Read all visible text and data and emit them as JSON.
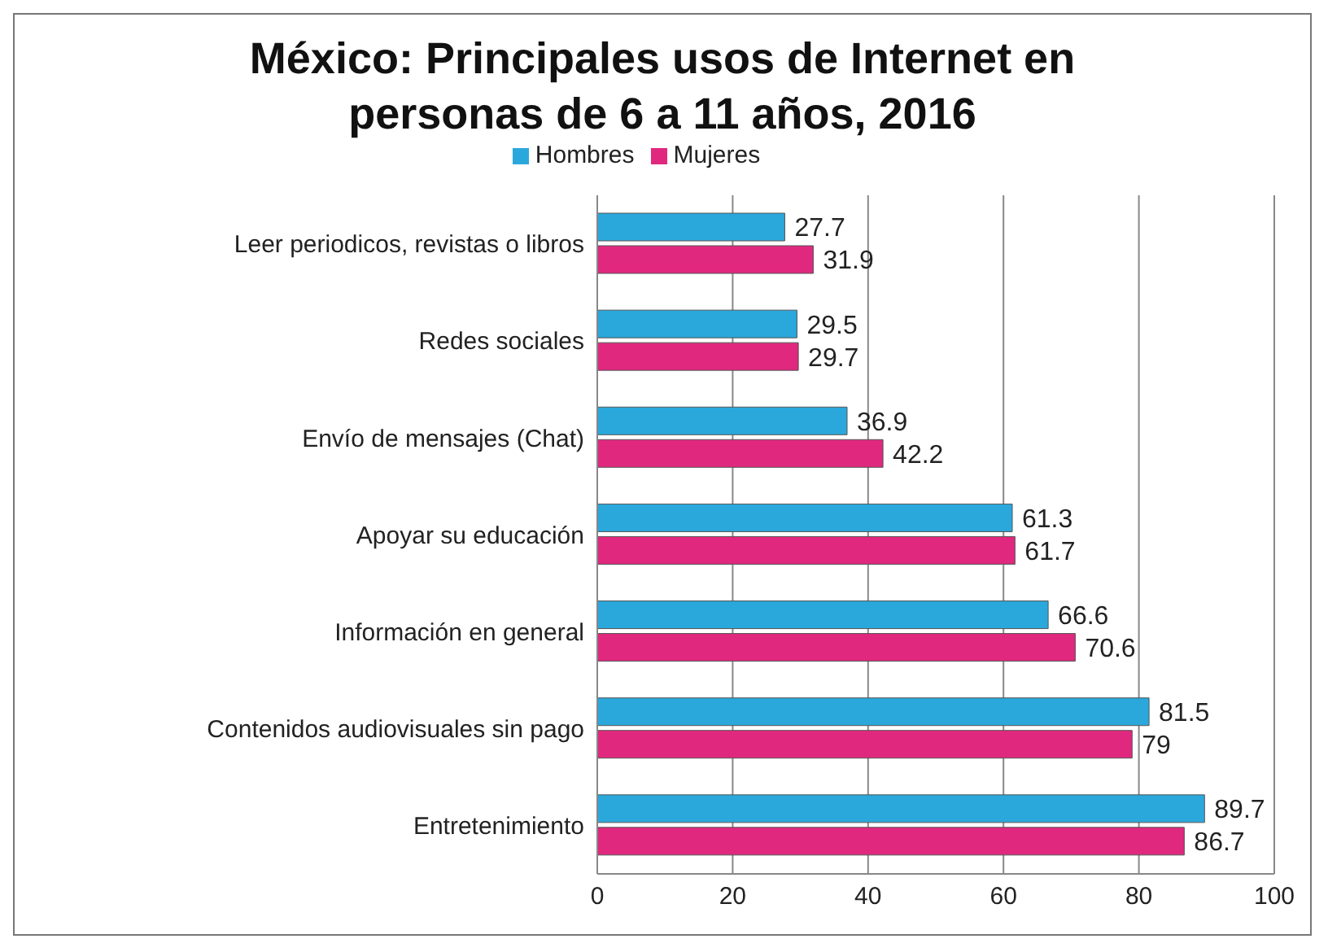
{
  "chart_data": {
    "type": "bar",
    "orientation": "horizontal",
    "title": "México: Principales usos de Internet en personas de 6 a 11 años, 2016",
    "categories": [
      "Leer periodicos, revistas o libros",
      "Redes sociales",
      "Envío de mensajes (Chat)",
      "Apoyar su educación",
      "Información en general",
      "Contenidos audiovisuales sin pago",
      "Entretenimiento"
    ],
    "series": [
      {
        "name": "Hombres",
        "color": "#2aa8dc",
        "values": [
          27.7,
          29.5,
          36.9,
          61.3,
          66.6,
          81.5,
          89.7
        ]
      },
      {
        "name": "Mujeres",
        "color": "#e0287e",
        "values": [
          31.9,
          29.7,
          42.2,
          61.7,
          70.6,
          79,
          86.7
        ]
      }
    ],
    "xlim": [
      0,
      100
    ],
    "xticks": [
      0,
      20,
      40,
      60,
      80,
      100
    ],
    "grid": "x",
    "legend": "top",
    "data_labels": true
  }
}
